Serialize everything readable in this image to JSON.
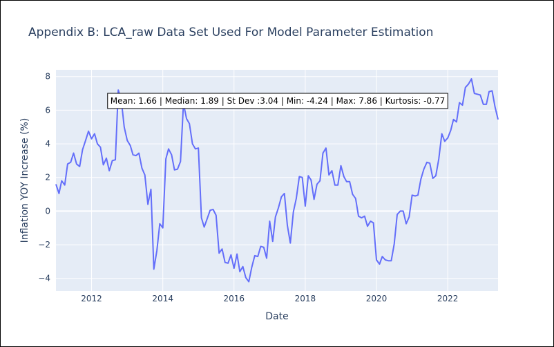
{
  "chart_data": {
    "type": "line",
    "title": "Appendix B: LCA_raw Data Set Used For Model Parameter Estimation",
    "xlabel": "Date",
    "ylabel": "Inflation YOY Increase (%)",
    "x_range": [
      "2011-01-01",
      "2023-06-01"
    ],
    "ylim": [
      -4.75,
      8.4
    ],
    "x_ticks": [
      "2012",
      "2014",
      "2016",
      "2018",
      "2020",
      "2022"
    ],
    "x_tick_dates": [
      "2012-01-01",
      "2014-01-01",
      "2016-01-01",
      "2018-01-01",
      "2020-01-01",
      "2022-01-01"
    ],
    "y_ticks": [
      -4,
      -2,
      0,
      2,
      4,
      6,
      8
    ],
    "grid": true,
    "plot_bgcolor": "#e5ecf6",
    "line_color": "#636efa",
    "series": [
      {
        "points": [
          [
            "2011-01-01",
            1.6
          ],
          [
            "2011-02-01",
            1.05
          ],
          [
            "2011-03-01",
            1.8
          ],
          [
            "2011-04-01",
            1.55
          ],
          [
            "2011-05-01",
            2.8
          ],
          [
            "2011-06-01",
            2.9
          ],
          [
            "2011-07-01",
            3.45
          ],
          [
            "2011-08-01",
            2.8
          ],
          [
            "2011-09-01",
            2.65
          ],
          [
            "2011-10-01",
            3.65
          ],
          [
            "2011-11-01",
            4.2
          ],
          [
            "2011-12-01",
            4.75
          ],
          [
            "2012-01-01",
            4.3
          ],
          [
            "2012-02-01",
            4.6
          ],
          [
            "2012-03-01",
            4.0
          ],
          [
            "2012-04-01",
            3.8
          ],
          [
            "2012-05-01",
            2.75
          ],
          [
            "2012-06-01",
            3.15
          ],
          [
            "2012-07-01",
            2.4
          ],
          [
            "2012-08-01",
            3.0
          ],
          [
            "2012-09-01",
            3.05
          ],
          [
            "2012-10-01",
            7.2
          ],
          [
            "2012-11-01",
            6.6
          ],
          [
            "2012-12-01",
            5.0
          ],
          [
            "2013-01-01",
            4.2
          ],
          [
            "2013-02-01",
            3.9
          ],
          [
            "2013-03-01",
            3.35
          ],
          [
            "2013-04-01",
            3.3
          ],
          [
            "2013-05-01",
            3.45
          ],
          [
            "2013-06-01",
            2.55
          ],
          [
            "2013-07-01",
            2.15
          ],
          [
            "2013-08-01",
            0.4
          ],
          [
            "2013-09-01",
            1.3
          ],
          [
            "2013-10-01",
            -3.45
          ],
          [
            "2013-11-01",
            -2.35
          ],
          [
            "2013-12-01",
            -0.75
          ],
          [
            "2014-01-01",
            -1.0
          ],
          [
            "2014-02-01",
            3.1
          ],
          [
            "2014-03-01",
            3.7
          ],
          [
            "2014-04-01",
            3.35
          ],
          [
            "2014-05-01",
            2.45
          ],
          [
            "2014-06-01",
            2.5
          ],
          [
            "2014-07-01",
            2.95
          ],
          [
            "2014-08-01",
            6.4
          ],
          [
            "2014-09-01",
            5.5
          ],
          [
            "2014-10-01",
            5.2
          ],
          [
            "2014-11-01",
            4.0
          ],
          [
            "2014-12-01",
            3.7
          ],
          [
            "2015-01-01",
            3.75
          ],
          [
            "2015-02-01",
            -0.4
          ],
          [
            "2015-03-01",
            -0.95
          ],
          [
            "2015-04-01",
            -0.45
          ],
          [
            "2015-05-01",
            0.05
          ],
          [
            "2015-06-01",
            0.1
          ],
          [
            "2015-07-01",
            -0.25
          ],
          [
            "2015-08-01",
            -2.5
          ],
          [
            "2015-09-01",
            -2.25
          ],
          [
            "2015-10-01",
            -3.05
          ],
          [
            "2015-11-01",
            -3.1
          ],
          [
            "2015-12-01",
            -2.6
          ],
          [
            "2016-01-01",
            -3.4
          ],
          [
            "2016-02-01",
            -2.55
          ],
          [
            "2016-03-01",
            -3.6
          ],
          [
            "2016-04-01",
            -3.3
          ],
          [
            "2016-05-01",
            -3.95
          ],
          [
            "2016-06-01",
            -4.2
          ],
          [
            "2016-07-01",
            -3.35
          ],
          [
            "2016-08-01",
            -2.65
          ],
          [
            "2016-09-01",
            -2.7
          ],
          [
            "2016-10-01",
            -2.1
          ],
          [
            "2016-11-01",
            -2.15
          ],
          [
            "2016-12-01",
            -2.8
          ],
          [
            "2017-01-01",
            -0.6
          ],
          [
            "2017-02-01",
            -1.8
          ],
          [
            "2017-03-01",
            -0.35
          ],
          [
            "2017-04-01",
            0.2
          ],
          [
            "2017-05-01",
            0.85
          ],
          [
            "2017-06-01",
            1.05
          ],
          [
            "2017-07-01",
            -0.85
          ],
          [
            "2017-08-01",
            -1.9
          ],
          [
            "2017-09-01",
            -0.05
          ],
          [
            "2017-10-01",
            0.75
          ],
          [
            "2017-11-01",
            2.05
          ],
          [
            "2017-12-01",
            2.0
          ],
          [
            "2018-01-01",
            0.3
          ],
          [
            "2018-02-01",
            2.1
          ],
          [
            "2018-03-01",
            1.85
          ],
          [
            "2018-04-01",
            0.7
          ],
          [
            "2018-05-01",
            1.6
          ],
          [
            "2018-06-01",
            1.8
          ],
          [
            "2018-07-01",
            3.45
          ],
          [
            "2018-08-01",
            3.75
          ],
          [
            "2018-09-01",
            2.15
          ],
          [
            "2018-10-01",
            2.4
          ],
          [
            "2018-11-01",
            1.55
          ],
          [
            "2018-12-01",
            1.55
          ],
          [
            "2019-01-01",
            2.7
          ],
          [
            "2019-02-01",
            2.05
          ],
          [
            "2019-03-01",
            1.75
          ],
          [
            "2019-04-01",
            1.75
          ],
          [
            "2019-05-01",
            1.0
          ],
          [
            "2019-06-01",
            0.75
          ],
          [
            "2019-07-01",
            -0.3
          ],
          [
            "2019-08-01",
            -0.4
          ],
          [
            "2019-09-01",
            -0.3
          ],
          [
            "2019-10-01",
            -0.9
          ],
          [
            "2019-11-01",
            -0.6
          ],
          [
            "2019-12-01",
            -0.7
          ],
          [
            "2020-01-01",
            -2.9
          ],
          [
            "2020-02-01",
            -3.15
          ],
          [
            "2020-03-01",
            -2.7
          ],
          [
            "2020-04-01",
            -2.9
          ],
          [
            "2020-05-01",
            -2.95
          ],
          [
            "2020-06-01",
            -2.95
          ],
          [
            "2020-07-01",
            -1.95
          ],
          [
            "2020-08-01",
            -0.2
          ],
          [
            "2020-09-01",
            0.0
          ],
          [
            "2020-10-01",
            0.0
          ],
          [
            "2020-11-01",
            -0.75
          ],
          [
            "2020-12-01",
            -0.35
          ],
          [
            "2021-01-01",
            0.95
          ],
          [
            "2021-02-01",
            0.9
          ],
          [
            "2021-03-01",
            0.95
          ],
          [
            "2021-04-01",
            1.9
          ],
          [
            "2021-05-01",
            2.5
          ],
          [
            "2021-06-01",
            2.9
          ],
          [
            "2021-07-01",
            2.85
          ],
          [
            "2021-08-01",
            1.95
          ],
          [
            "2021-09-01",
            2.1
          ],
          [
            "2021-10-01",
            3.1
          ],
          [
            "2021-11-01",
            4.6
          ],
          [
            "2021-12-01",
            4.15
          ],
          [
            "2022-01-01",
            4.35
          ],
          [
            "2022-02-01",
            4.8
          ],
          [
            "2022-03-01",
            5.45
          ],
          [
            "2022-04-01",
            5.3
          ],
          [
            "2022-05-01",
            6.45
          ],
          [
            "2022-06-01",
            6.3
          ],
          [
            "2022-07-01",
            7.35
          ],
          [
            "2022-08-01",
            7.55
          ],
          [
            "2022-09-01",
            7.86
          ],
          [
            "2022-10-01",
            7.0
          ],
          [
            "2022-11-01",
            6.95
          ],
          [
            "2022-12-01",
            6.9
          ],
          [
            "2023-01-01",
            6.35
          ],
          [
            "2023-02-01",
            6.35
          ],
          [
            "2023-03-01",
            7.1
          ],
          [
            "2023-04-01",
            7.15
          ],
          [
            "2023-05-01",
            6.2
          ],
          [
            "2023-06-01",
            5.45
          ]
        ]
      }
    ],
    "annotation": "Mean: 1.66 | Median: 1.89 | St Dev :3.04 | Min: -4.24 | Max: 7.86 | Kurtosis: -0.77"
  }
}
